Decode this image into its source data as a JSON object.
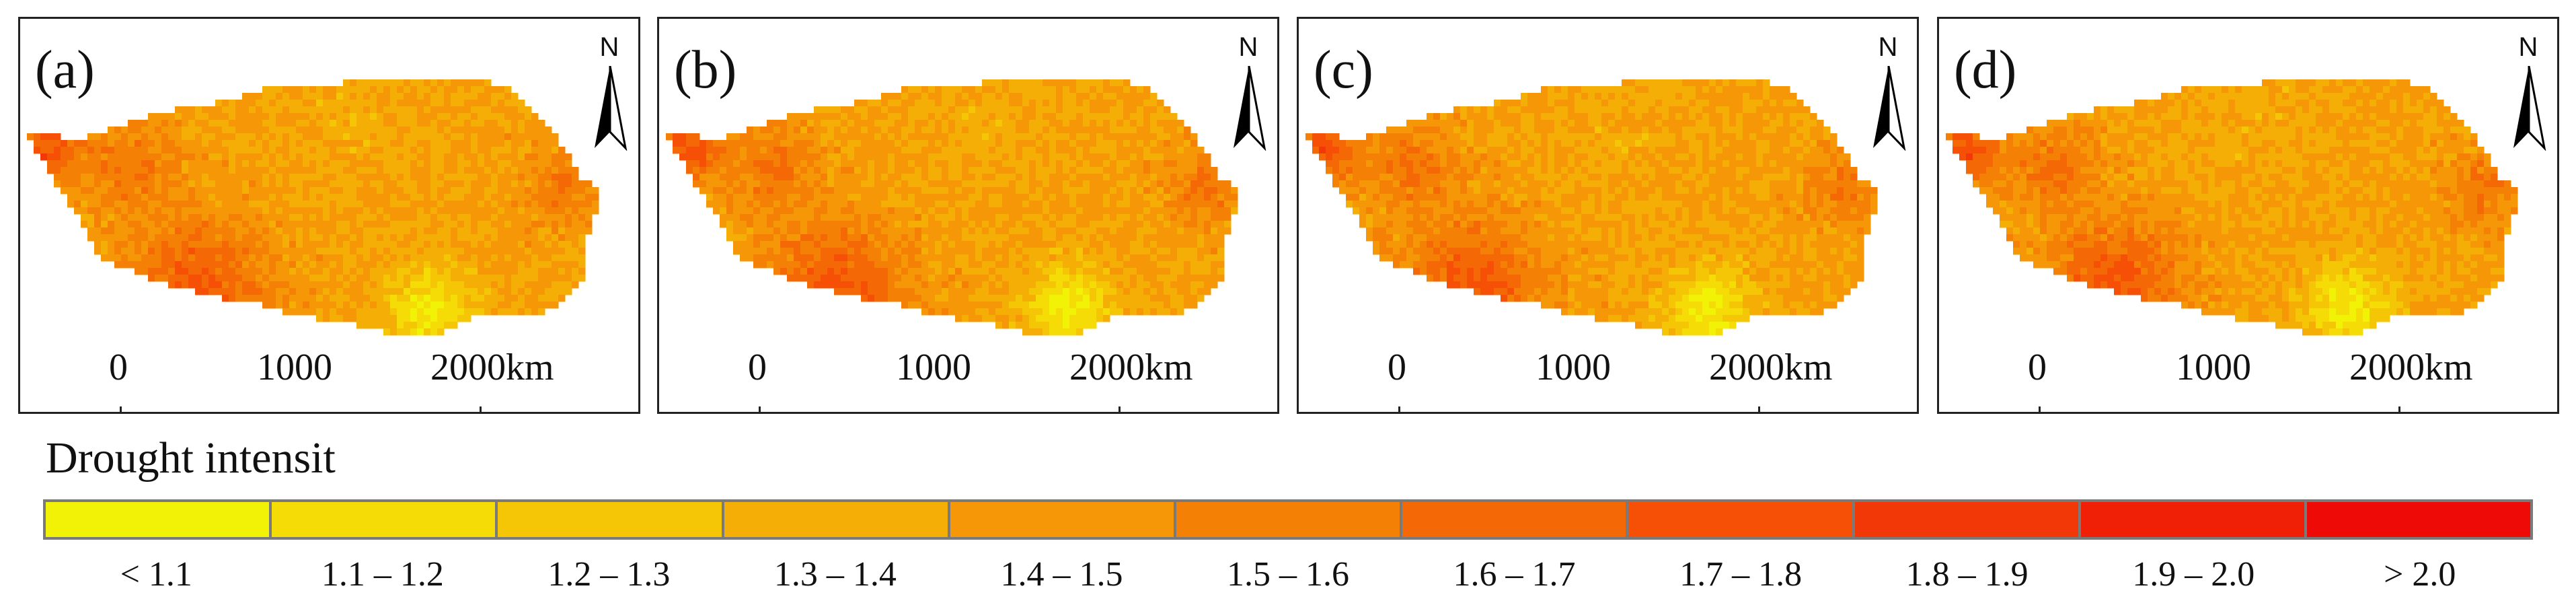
{
  "panels": [
    {
      "label": "(a)",
      "shift": 0
    },
    {
      "label": "(b)",
      "shift": 1
    },
    {
      "label": "(c)",
      "shift": 2
    },
    {
      "label": "(d)",
      "shift": 3
    }
  ],
  "north_label": "N",
  "scale": {
    "ticks": [
      "0",
      "1000",
      "2000km"
    ]
  },
  "legend": {
    "title": "Drought intensit",
    "classes": [
      {
        "label": "< 1.1",
        "color": "#f2f207"
      },
      {
        "label": "1.1 – 1.2",
        "color": "#f5dc06"
      },
      {
        "label": "1.2 – 1.3",
        "color": "#f5c606"
      },
      {
        "label": "1.3 – 1.4",
        "color": "#f5ae06"
      },
      {
        "label": "1.4 – 1.5",
        "color": "#f59706"
      },
      {
        "label": "1.5 – 1.6",
        "color": "#f58006"
      },
      {
        "label": "1.6 – 1.7",
        "color": "#f56806"
      },
      {
        "label": "1.7 – 1.8",
        "color": "#f55006"
      },
      {
        "label": "1.8 – 1.9",
        "color": "#f23806"
      },
      {
        "label": "1.9 – 2.0",
        "color": "#f02006"
      },
      {
        "label": "> 2.0",
        "color": "#ee0a06"
      }
    ]
  }
}
